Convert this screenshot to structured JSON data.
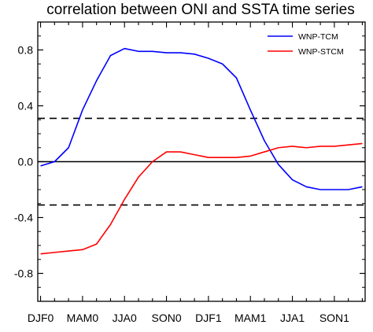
{
  "chart_data": {
    "type": "line",
    "title": "correlation between ONI and SSTA time series",
    "xlabel": "",
    "ylabel": "",
    "x_tick_labels": [
      "DJF0",
      "MAM0",
      "JJA0",
      "SON0",
      "DJF1",
      "MAM1",
      "JJA1",
      "SON1"
    ],
    "y_tick_labels": [
      "0.8",
      "0.4",
      "0.0",
      "-0.4",
      "-0.8"
    ],
    "y_ticks": [
      0.8,
      0.4,
      0.0,
      -0.4,
      -0.8
    ],
    "xlim": [
      -0.2,
      23.2
    ],
    "ylim": [
      -1.0,
      1.0
    ],
    "x": [
      0,
      1,
      2,
      3,
      4,
      5,
      6,
      7,
      8,
      9,
      10,
      11,
      12,
      13,
      14,
      15,
      16,
      17,
      18,
      19,
      20,
      21,
      22,
      23
    ],
    "series": [
      {
        "name": "WNP-TCM",
        "color": "#0000ff",
        "values": [
          -0.03,
          0.0,
          0.1,
          0.37,
          0.58,
          0.76,
          0.81,
          0.79,
          0.79,
          0.78,
          0.78,
          0.77,
          0.74,
          0.7,
          0.6,
          0.37,
          0.15,
          -0.02,
          -0.13,
          -0.18,
          -0.2,
          -0.2,
          -0.2,
          -0.18
        ]
      },
      {
        "name": "WNP-STCM",
        "color": "#ff0000",
        "values": [
          -0.66,
          -0.65,
          -0.64,
          -0.63,
          -0.59,
          -0.45,
          -0.27,
          -0.11,
          0.0,
          0.07,
          0.07,
          0.05,
          0.03,
          0.03,
          0.03,
          0.04,
          0.07,
          0.1,
          0.11,
          0.1,
          0.11,
          0.11,
          0.12,
          0.13
        ]
      }
    ],
    "reference_lines": [
      {
        "y": 0.0,
        "style": "solid",
        "color": "#000000"
      },
      {
        "y": 0.31,
        "style": "dashed",
        "color": "#000000"
      },
      {
        "y": -0.31,
        "style": "dashed",
        "color": "#000000"
      }
    ],
    "legend": {
      "position": "top-right",
      "entries": [
        "WNP-TCM",
        "WNP-STCM"
      ]
    },
    "grid": false
  }
}
